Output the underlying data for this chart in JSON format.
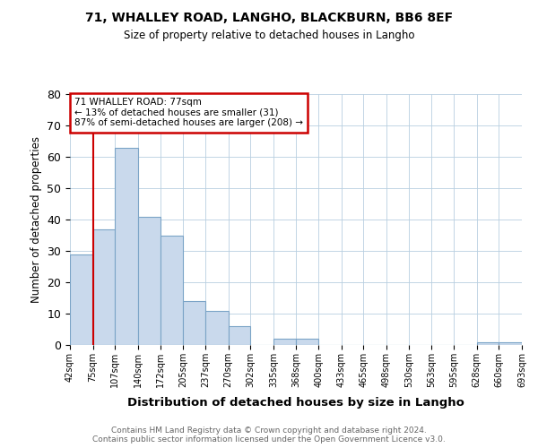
{
  "title1": "71, WHALLEY ROAD, LANGHO, BLACKBURN, BB6 8EF",
  "title2": "Size of property relative to detached houses in Langho",
  "xlabel": "Distribution of detached houses by size in Langho",
  "ylabel": "Number of detached properties",
  "bar_heights": [
    29,
    37,
    63,
    41,
    35,
    14,
    11,
    6,
    0,
    2,
    2,
    0,
    0,
    0,
    0,
    0,
    0,
    0,
    1,
    1
  ],
  "bin_edges": [
    42,
    75,
    107,
    140,
    172,
    205,
    237,
    270,
    302,
    335,
    368,
    400,
    433,
    465,
    498,
    530,
    563,
    595,
    628,
    660,
    693
  ],
  "tick_labels": [
    "42sqm",
    "75sqm",
    "107sqm",
    "140sqm",
    "172sqm",
    "205sqm",
    "237sqm",
    "270sqm",
    "302sqm",
    "335sqm",
    "368sqm",
    "400sqm",
    "433sqm",
    "465sqm",
    "498sqm",
    "530sqm",
    "563sqm",
    "595sqm",
    "628sqm",
    "660sqm",
    "693sqm"
  ],
  "bar_color": "#c9d9ec",
  "bar_edgecolor": "#7ba4c7",
  "vline_x": 75,
  "vline_color": "#cc0000",
  "ylim": [
    0,
    80
  ],
  "yticks": [
    0,
    10,
    20,
    30,
    40,
    50,
    60,
    70,
    80
  ],
  "annotation_line1": "71 WHALLEY ROAD: 77sqm",
  "annotation_line2": "← 13% of detached houses are smaller (31)",
  "annotation_line3": "87% of semi-detached houses are larger (208) →",
  "annotation_box_edgecolor": "#cc0000",
  "footnote1": "Contains HM Land Registry data © Crown copyright and database right 2024.",
  "footnote2": "Contains public sector information licensed under the Open Government Licence v3.0.",
  "footnote_color": "#666666",
  "background_color": "#ffffff",
  "grid_color": "#b8cfe0"
}
